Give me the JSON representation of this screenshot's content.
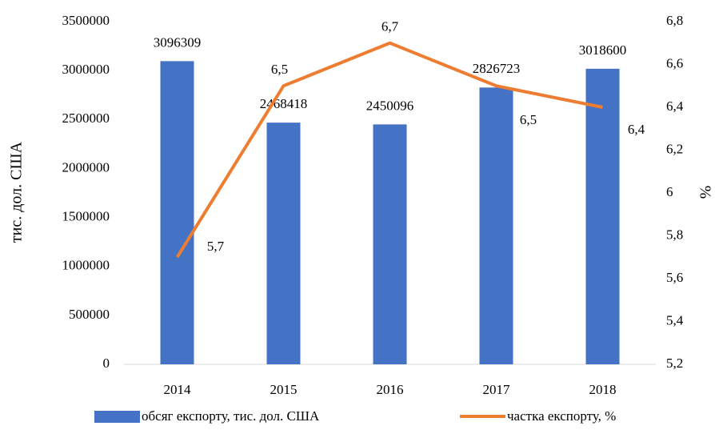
{
  "chart_data": {
    "type": "bar",
    "categories": [
      "2014",
      "2015",
      "2016",
      "2017",
      "2018"
    ],
    "series": [
      {
        "name": "обсяг експорту, тис. дол. США",
        "type": "bar",
        "color": "#4472c4",
        "values": [
          3096309,
          2468418,
          2450096,
          2826723,
          3018600
        ]
      },
      {
        "name": "частка експорту, %",
        "type": "line",
        "axis": "y2",
        "color": "#ed7d31",
        "values": [
          5.7,
          6.5,
          6.7,
          6.5,
          6.4
        ],
        "value_labels": [
          "5,7",
          "6,5",
          "6,7",
          "6,5",
          "6,4"
        ]
      }
    ],
    "y_label": "тис. дол. США",
    "y2_label": "%",
    "ylim": [
      0,
      3500000
    ],
    "yticks": [
      0,
      500000,
      1000000,
      1500000,
      2000000,
      2500000,
      3000000,
      3500000
    ],
    "y2lim": [
      5.2,
      6.8
    ],
    "y2ticks": [
      {
        "value": 5.2,
        "label": "5,2"
      },
      {
        "value": 5.4,
        "label": "5,4"
      },
      {
        "value": 5.6,
        "label": "5,6"
      },
      {
        "value": 5.8,
        "label": "5,8"
      },
      6,
      {
        "value": 6.2,
        "label": "6,2"
      },
      {
        "value": 6.4,
        "label": "6,4"
      },
      {
        "value": 6.6,
        "label": "6,6"
      },
      {
        "value": 6.8,
        "label": "6,8"
      }
    ],
    "legend": "bottom"
  }
}
